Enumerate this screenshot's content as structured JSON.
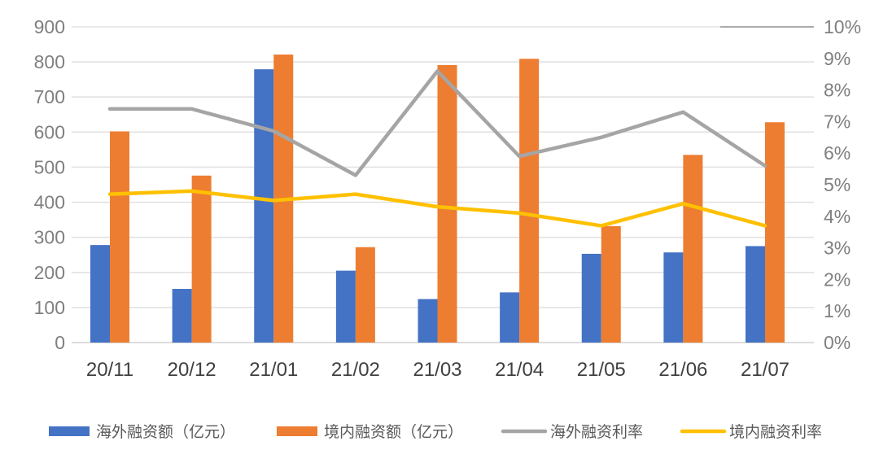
{
  "chart_data": {
    "type": "bar",
    "subtype": "combo-bar-line-dual-axis",
    "title": "",
    "xlabel": "",
    "ylabel_left": "",
    "ylabel_right": "",
    "grid": true,
    "legend_position": "bottom",
    "categories": [
      "20/11",
      "20/12",
      "21/01",
      "21/02",
      "21/03",
      "21/04",
      "21/05",
      "21/06",
      "21/07"
    ],
    "series": [
      {
        "name": "海外融资额（亿元）",
        "render": "bar",
        "axis": "left",
        "color": "#4472C4",
        "values": [
          278,
          153,
          779,
          205,
          124,
          143,
          253,
          257,
          275
        ]
      },
      {
        "name": "境内融资额（亿元）",
        "render": "bar",
        "axis": "left",
        "color": "#ED7D31",
        "values": [
          602,
          476,
          821,
          272,
          791,
          809,
          332,
          535,
          628
        ]
      },
      {
        "name": "海外融资利率",
        "render": "line",
        "axis": "right",
        "color": "#A5A5A5",
        "unit": "%",
        "values": [
          7.4,
          7.4,
          6.7,
          5.3,
          8.6,
          5.9,
          6.5,
          7.3,
          5.6
        ]
      },
      {
        "name": "境内融资利率",
        "render": "line",
        "axis": "right",
        "color": "#FFC000",
        "unit": "%",
        "values": [
          4.7,
          4.8,
          4.5,
          4.7,
          4.3,
          4.1,
          3.7,
          4.4,
          3.7
        ]
      }
    ],
    "left_axis": {
      "min": 0,
      "max": 900,
      "step": 100,
      "tick_labels": [
        "0",
        "100",
        "200",
        "300",
        "400",
        "500",
        "600",
        "700",
        "800",
        "900"
      ]
    },
    "right_axis": {
      "min": 0,
      "max": 10,
      "step": 1,
      "tick_labels": [
        "0%",
        "1%",
        "2%",
        "3%",
        "4%",
        "5%",
        "6%",
        "7%",
        "8%",
        "9%",
        "10%"
      ]
    }
  },
  "colors": {
    "background": "#ffffff",
    "gridline": "#e2e2e2",
    "baseline": "#d0d0d0",
    "right_axis_tick": "#ababab",
    "y_tick_label": "#7f7f7f",
    "x_tick_label": "#404040",
    "legend_text": "#595959"
  }
}
